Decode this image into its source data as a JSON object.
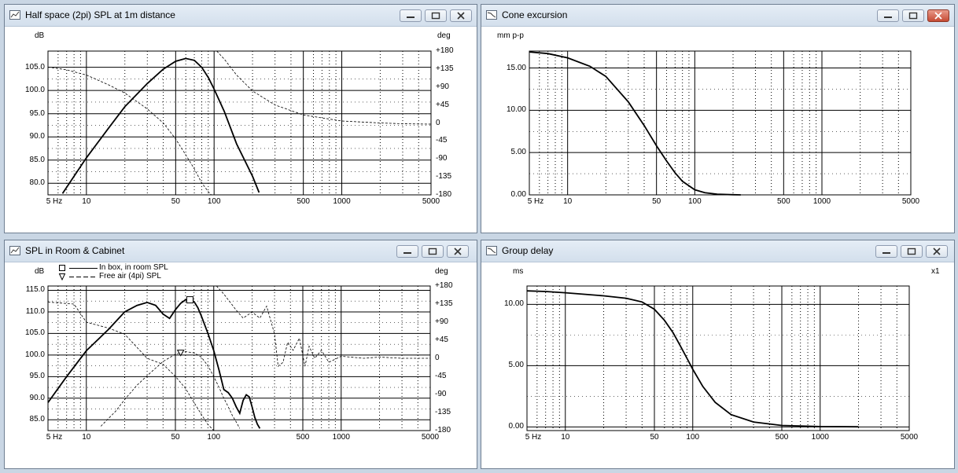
{
  "windows": [
    {
      "id": "w1",
      "title": "Half space (2pi) SPL at 1m distance",
      "close_active": false,
      "y_unit": "dB",
      "y2_unit": "deg",
      "legend": [],
      "chart_data": {
        "type": "line",
        "title": "Half space (2pi) SPL at 1m distance",
        "xlabel": "",
        "ylabel": "dB",
        "y2label": "deg",
        "x_scale": "log",
        "xlim": [
          5,
          5000
        ],
        "ylim": [
          77.5,
          108.5
        ],
        "y2lim": [
          -180,
          180
        ],
        "x_ticks": [
          5,
          10,
          50,
          100,
          500,
          1000,
          5000
        ],
        "x_tick_labels": [
          "5 Hz",
          "10",
          "50",
          "100",
          "500",
          "1000",
          "5000"
        ],
        "y_ticks": [
          80,
          85,
          90,
          95,
          100,
          105
        ],
        "y_tick_labels": [
          "80.0",
          "85.0",
          "90.0",
          "95.0",
          "100.0",
          "105.0"
        ],
        "y2_ticks": [
          -180,
          -135,
          -90,
          -45,
          0,
          45,
          90,
          135,
          180
        ],
        "y2_tick_labels": [
          "-180",
          "-135",
          "-90",
          "-45",
          "0",
          "+45",
          "+90",
          "+135",
          "+180"
        ],
        "grid": true,
        "series": [
          {
            "axis": "left",
            "style": "solid",
            "x": [
              6.5,
              8,
              10,
              15,
              20,
              30,
              40,
              50,
              60,
              70,
              80,
              90,
              100,
              120,
              150,
              200,
              225
            ],
            "y": [
              77.8,
              81.5,
              85.5,
              92,
              96.5,
              101.5,
              104.6,
              106.3,
              106.9,
              106.5,
              105,
              102.8,
              100.3,
              95.5,
              88.5,
              81.5,
              78
            ]
          },
          {
            "axis": "right",
            "style": "dashed",
            "x": [
              5,
              7,
              10,
              15,
              20,
              30,
              40,
              50,
              60,
              70,
              80,
              90,
              95
            ],
            "y": [
              140,
              133,
              120,
              95,
              75,
              35,
              0,
              -40,
              -80,
              -115,
              -150,
              -172,
              -180
            ]
          },
          {
            "axis": "right",
            "style": "dashed",
            "x": [
              105,
              120,
              150,
              200,
              300,
              500,
              1000,
              2000,
              3000,
              5000
            ],
            "y": [
              180,
              160,
              120,
              80,
              45,
              20,
              5,
              0,
              -2,
              -3
            ]
          }
        ]
      }
    },
    {
      "id": "w2",
      "title": "Cone excursion",
      "close_active": true,
      "y_unit": "mm p-p",
      "y2_unit": "",
      "legend": [],
      "chart_data": {
        "type": "line",
        "title": "Cone excursion",
        "xlabel": "",
        "ylabel": "mm p-p",
        "x_scale": "log",
        "xlim": [
          5,
          5000
        ],
        "ylim": [
          0,
          17
        ],
        "x_ticks": [
          5,
          10,
          50,
          100,
          500,
          1000,
          5000
        ],
        "x_tick_labels": [
          "5 Hz",
          "10",
          "50",
          "100",
          "500",
          "1000",
          "5000"
        ],
        "y_ticks": [
          0,
          5,
          10,
          15
        ],
        "y_tick_labels": [
          "0.00",
          "5.00",
          "10.00",
          "15.00"
        ],
        "grid": true,
        "series": [
          {
            "axis": "left",
            "style": "solid",
            "x": [
              5,
              7,
              10,
              15,
              20,
              30,
              40,
              50,
              60,
              70,
              80,
              100,
              120,
              150,
              200,
              230
            ],
            "y": [
              16.9,
              16.7,
              16.2,
              15.2,
              14,
              11,
              8.2,
              5.8,
              4,
              2.6,
              1.6,
              0.6,
              0.25,
              0.08,
              0.02,
              0.0
            ]
          }
        ]
      }
    },
    {
      "id": "w3",
      "title": "SPL in Room & Cabinet",
      "close_active": false,
      "y_unit": "dB",
      "y2_unit": "deg",
      "legend": [
        "In box, in room SPL",
        "Free air (4pi) SPL"
      ],
      "chart_data": {
        "type": "line",
        "title": "SPL in Room & Cabinet",
        "xlabel": "",
        "ylabel": "dB",
        "y2label": "deg",
        "x_scale": "log",
        "xlim": [
          5,
          5000
        ],
        "ylim": [
          82.5,
          116
        ],
        "y2lim": [
          -180,
          180
        ],
        "x_ticks": [
          5,
          10,
          50,
          100,
          500,
          1000,
          5000
        ],
        "x_tick_labels": [
          "5 Hz",
          "10",
          "50",
          "100",
          "500",
          "1000",
          "5000"
        ],
        "y_ticks": [
          85,
          90,
          95,
          100,
          105,
          110,
          115
        ],
        "y_tick_labels": [
          "85.0",
          "90.0",
          "95.0",
          "100.0",
          "105.0",
          "110.0",
          "115.0"
        ],
        "y2_ticks": [
          -180,
          -135,
          -90,
          -45,
          0,
          45,
          90,
          135,
          180
        ],
        "y2_tick_labels": [
          "-180",
          "-135",
          "-90",
          "-45",
          "0",
          "+45",
          "+90",
          "+135",
          "+180"
        ],
        "grid": true,
        "series": [
          {
            "name": "In box, in room SPL",
            "axis": "left",
            "style": "solid",
            "x": [
              5,
              7,
              10,
              15,
              20,
              25,
              30,
              35,
              40,
              45,
              50,
              55,
              60,
              65,
              70,
              75,
              80,
              90,
              100,
              110,
              120,
              130,
              140,
              150,
              160,
              170,
              180,
              190,
              200,
              210,
              220,
              230
            ],
            "y": [
              89,
              95,
              101,
              106,
              110,
              111.5,
              112.2,
              111.5,
              109.5,
              108.5,
              110.5,
              112,
              112.8,
              112.8,
              112.4,
              111,
              109,
              105,
              101,
              96.5,
              92,
              91.3,
              90,
              88,
              86.5,
              89.5,
              90.8,
              90.3,
              88,
              85.5,
              84,
              83
            ]
          },
          {
            "name": "Free air (4pi) SPL",
            "axis": "left",
            "style": "dashed",
            "x": [
              13,
              17,
              20,
              25,
              30,
              40,
              50,
              60,
              70,
              80,
              90,
              100,
              110,
              120,
              130,
              140,
              150,
              160
            ],
            "y": [
              83.5,
              87,
              89.7,
              93,
              95.2,
              98.5,
              100.2,
              100.8,
              100.5,
              99.5,
              97.5,
              95,
              92.5,
              90,
              88,
              86,
              84.5,
              83
            ]
          },
          {
            "axis": "right",
            "style": "dashed",
            "x": [
              5,
              8,
              10,
              15,
              20,
              30,
              40,
              50,
              60,
              70,
              80,
              90,
              100
            ],
            "y": [
              140,
              135,
              90,
              75,
              60,
              0,
              -15,
              -45,
              -75,
              -110,
              -140,
              -165,
              -180
            ]
          },
          {
            "axis": "right",
            "style": "dashed",
            "x": [
              105,
              120,
              150,
              170,
              200,
              230,
              260,
              300,
              320,
              350,
              380,
              420,
              470,
              520,
              560,
              620,
              700,
              800,
              1000,
              1500,
              2000,
              3000,
              5000
            ],
            "y": [
              180,
              160,
              120,
              100,
              115,
              100,
              130,
              60,
              -20,
              -10,
              40,
              20,
              50,
              -20,
              30,
              0,
              20,
              -10,
              5,
              0,
              3,
              0,
              0
            ]
          }
        ]
      }
    },
    {
      "id": "w4",
      "title": "Group delay",
      "close_active": false,
      "y_unit": "ms",
      "y2_unit": "x1",
      "legend": [],
      "chart_data": {
        "type": "line",
        "title": "Group delay",
        "xlabel": "",
        "ylabel": "ms",
        "x_scale": "log",
        "xlim": [
          5,
          5000
        ],
        "ylim": [
          -0.3,
          11.5
        ],
        "x_ticks": [
          5,
          10,
          50,
          100,
          500,
          1000,
          5000
        ],
        "x_tick_labels": [
          "5 Hz",
          "10",
          "50",
          "100",
          "500",
          "1000",
          "5000"
        ],
        "y_ticks": [
          0,
          5,
          10
        ],
        "y_tick_labels": [
          "0.00",
          "5.00",
          "10.00"
        ],
        "grid": true,
        "series": [
          {
            "axis": "left",
            "style": "solid",
            "x": [
              5,
              7,
              10,
              15,
              20,
              30,
              40,
              50,
              60,
              70,
              80,
              90,
              100,
              120,
              150,
              200,
              300,
              500,
              1000,
              2000
            ],
            "y": [
              11.1,
              11.05,
              10.95,
              10.8,
              10.7,
              10.5,
              10.2,
              9.6,
              8.7,
              7.7,
              6.6,
              5.6,
              4.7,
              3.3,
              2.0,
              1.0,
              0.4,
              0.12,
              0.03,
              0.01
            ]
          }
        ]
      }
    }
  ]
}
